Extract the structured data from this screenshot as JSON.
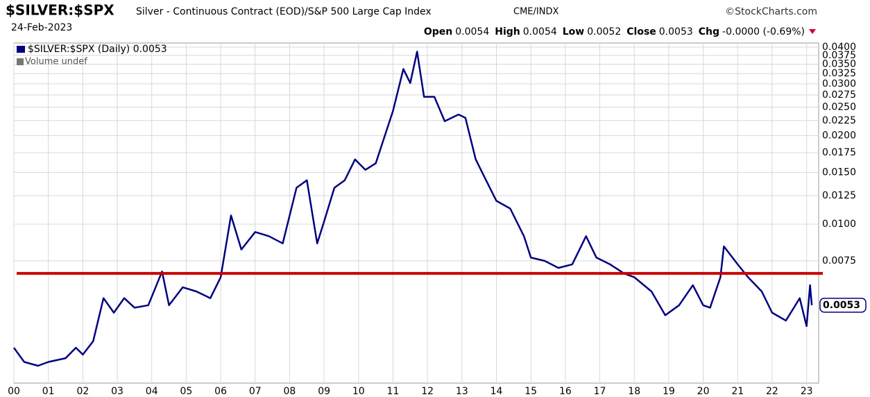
{
  "chart_data": {
    "type": "line",
    "title": "$SILVER:$SPX",
    "subtitle": "Silver - Continuous Contract (EOD)/S&P 500 Large Cap Index",
    "exchange": "CME/INDX",
    "source": "©StockCharts.com",
    "date": "24-Feb-2023",
    "ohlc": [
      {
        "label": "Open",
        "value": 0.0054
      },
      {
        "label": "High",
        "value": 0.0054
      },
      {
        "label": "Low",
        "value": 0.0052
      },
      {
        "label": "Close",
        "value": 0.0053
      }
    ],
    "change": {
      "label": "Chg",
      "value": "-0.0000 (-0.69%)"
    },
    "legend_line": "$SILVER:$SPX (Daily) 0.0053",
    "legend_volume": "Volume undef",
    "last_value": 0.0053,
    "log_scale": true,
    "grid": true,
    "reference_line": {
      "value": 0.0068,
      "color": "#cc0000"
    },
    "x": [
      2000.0,
      2000.3,
      2000.7,
      2001.0,
      2001.5,
      2001.8,
      2002.0,
      2002.3,
      2002.6,
      2002.9,
      2003.2,
      2003.5,
      2003.9,
      2004.3,
      2004.5,
      2004.9,
      2005.3,
      2005.7,
      2006.0,
      2006.3,
      2006.6,
      2007.0,
      2007.4,
      2007.8,
      2008.2,
      2008.5,
      2008.8,
      2009.0,
      2009.3,
      2009.6,
      2009.9,
      2010.2,
      2010.5,
      2010.8,
      2011.0,
      2011.3,
      2011.5,
      2011.7,
      2011.9,
      2012.2,
      2012.5,
      2012.9,
      2013.1,
      2013.4,
      2013.7,
      2014.0,
      2014.4,
      2014.8,
      2015.0,
      2015.4,
      2015.8,
      2016.2,
      2016.6,
      2016.9,
      2017.3,
      2017.7,
      2018.0,
      2018.5,
      2018.9,
      2019.3,
      2019.7,
      2020.0,
      2020.2,
      2020.5,
      2020.6,
      2021.0,
      2021.3,
      2021.7,
      2022.0,
      2022.4,
      2022.8,
      2023.0,
      2023.1,
      2023.15
    ],
    "series": [
      {
        "name": "$SILVER:$SPX",
        "color": "#000080",
        "values": [
          0.0038,
          0.0034,
          0.0033,
          0.0034,
          0.0035,
          0.0038,
          0.0036,
          0.004,
          0.0056,
          0.005,
          0.0056,
          0.0052,
          0.0053,
          0.0069,
          0.0053,
          0.0061,
          0.0059,
          0.0056,
          0.0066,
          0.0107,
          0.0082,
          0.0094,
          0.0091,
          0.0086,
          0.0133,
          0.0141,
          0.0086,
          0.0102,
          0.0133,
          0.0141,
          0.0166,
          0.0153,
          0.0161,
          0.0206,
          0.0243,
          0.0337,
          0.0302,
          0.0386,
          0.0271,
          0.0271,
          0.0224,
          0.0236,
          0.023,
          0.0166,
          0.0141,
          0.012,
          0.0113,
          0.0091,
          0.0077,
          0.0075,
          0.0071,
          0.0073,
          0.0091,
          0.0077,
          0.0073,
          0.0068,
          0.0066,
          0.0059,
          0.0049,
          0.0053,
          0.0062,
          0.0053,
          0.0052,
          0.0066,
          0.0084,
          0.0073,
          0.0066,
          0.0059,
          0.005,
          0.0047,
          0.0056,
          0.0045,
          0.0062,
          0.0053
        ]
      }
    ],
    "xlim": [
      2000,
      2023.35
    ],
    "ylim": [
      0.00288,
      0.0413
    ],
    "xticks": [
      {
        "value": 2000,
        "label": "00"
      },
      {
        "value": 2001,
        "label": "01"
      },
      {
        "value": 2002,
        "label": "02"
      },
      {
        "value": 2003,
        "label": "03"
      },
      {
        "value": 2004,
        "label": "04"
      },
      {
        "value": 2005,
        "label": "05"
      },
      {
        "value": 2006,
        "label": "06"
      },
      {
        "value": 2007,
        "label": "07"
      },
      {
        "value": 2008,
        "label": "08"
      },
      {
        "value": 2009,
        "label": "09"
      },
      {
        "value": 2010,
        "label": "10"
      },
      {
        "value": 2011,
        "label": "11"
      },
      {
        "value": 2012,
        "label": "12"
      },
      {
        "value": 2013,
        "label": "13"
      },
      {
        "value": 2014,
        "label": "14"
      },
      {
        "value": 2015,
        "label": "15"
      },
      {
        "value": 2016,
        "label": "16"
      },
      {
        "value": 2017,
        "label": "17"
      },
      {
        "value": 2018,
        "label": "18"
      },
      {
        "value": 2019,
        "label": "19"
      },
      {
        "value": 2020,
        "label": "20"
      },
      {
        "value": 2021,
        "label": "21"
      },
      {
        "value": 2022,
        "label": "22"
      },
      {
        "value": 2023,
        "label": "23"
      }
    ],
    "yticks": [
      {
        "value": 0.0075,
        "label": "0.0075"
      },
      {
        "value": 0.01,
        "label": "0.0100"
      },
      {
        "value": 0.0125,
        "label": "0.0125"
      },
      {
        "value": 0.015,
        "label": "0.0150"
      },
      {
        "value": 0.0175,
        "label": "0.0175"
      },
      {
        "value": 0.02,
        "label": "0.0200"
      },
      {
        "value": 0.0225,
        "label": "0.0225"
      },
      {
        "value": 0.025,
        "label": "0.0250"
      },
      {
        "value": 0.0275,
        "label": "0.0275"
      },
      {
        "value": 0.03,
        "label": "0.0300"
      },
      {
        "value": 0.0325,
        "label": "0.0325"
      },
      {
        "value": 0.035,
        "label": "0.0350"
      },
      {
        "value": 0.0375,
        "label": "0.0375"
      },
      {
        "value": 0.04,
        "label": "0.0400"
      }
    ]
  }
}
